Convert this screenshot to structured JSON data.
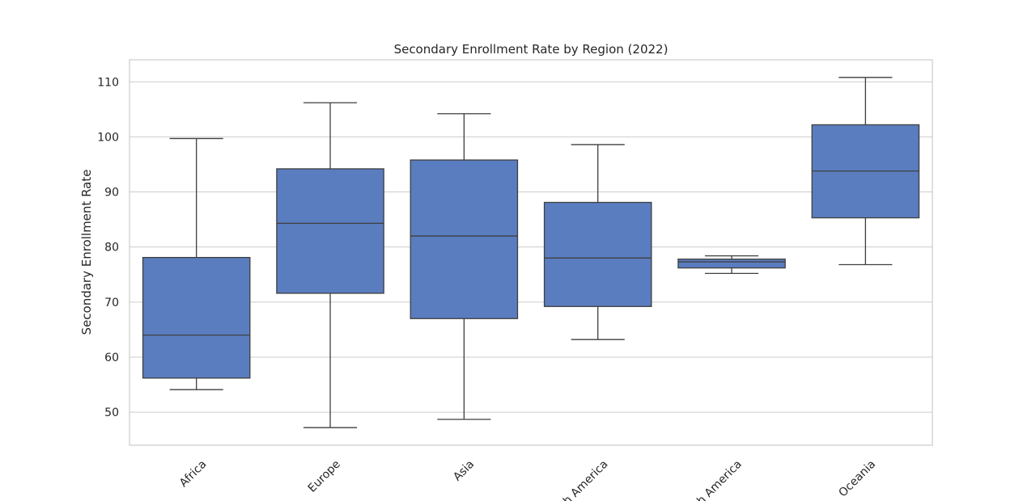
{
  "chart_data": {
    "type": "box",
    "title": "Secondary Enrollment Rate by Region (2022)",
    "xlabel": "",
    "ylabel": "Secondary Enrollment Rate",
    "ylim": [
      44,
      114
    ],
    "yticks": [
      50,
      60,
      70,
      80,
      90,
      100,
      110
    ],
    "grid": "horizontal",
    "box_color": "#5A7DC0",
    "line_color": "#3F3F3F",
    "categories": [
      "Africa",
      "Europe",
      "Asia",
      "South America",
      "North America",
      "Oceania"
    ],
    "boxes": [
      {
        "category": "Africa",
        "whisker_low": 54.1,
        "q1": 56.2,
        "median": 64.0,
        "q3": 78.1,
        "whisker_high": 99.7
      },
      {
        "category": "Europe",
        "whisker_low": 47.2,
        "q1": 71.6,
        "median": 84.3,
        "q3": 94.2,
        "whisker_high": 106.2
      },
      {
        "category": "Asia",
        "whisker_low": 48.7,
        "q1": 67.0,
        "median": 82.0,
        "q3": 95.8,
        "whisker_high": 104.2
      },
      {
        "category": "South America",
        "whisker_low": 63.2,
        "q1": 69.2,
        "median": 78.0,
        "q3": 88.1,
        "whisker_high": 98.6
      },
      {
        "category": "North America",
        "whisker_low": 75.2,
        "q1": 76.2,
        "median": 77.3,
        "q3": 77.8,
        "whisker_high": 78.4
      },
      {
        "category": "Oceania",
        "whisker_low": 76.8,
        "q1": 85.3,
        "median": 93.8,
        "q3": 102.2,
        "whisker_high": 110.8
      }
    ]
  }
}
